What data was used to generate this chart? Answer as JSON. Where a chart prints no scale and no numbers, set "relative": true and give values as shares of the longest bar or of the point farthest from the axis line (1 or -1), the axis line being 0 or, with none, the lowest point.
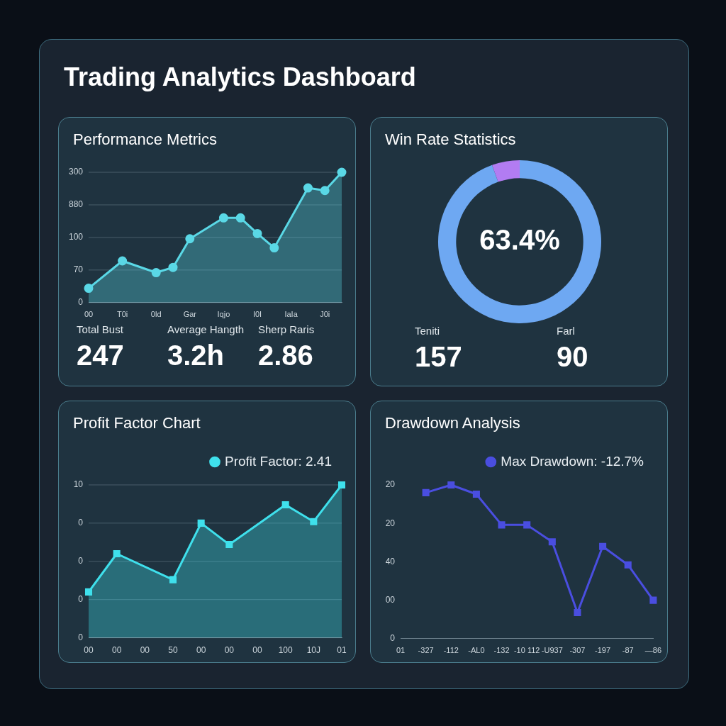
{
  "chart_data": [
    {
      "type": "other",
      "title": "Trading Analytics Dashboard"
    },
    {
      "type": "area",
      "title": "Performance Metrics",
      "relative": true,
      "categories": [
        "00",
        null,
        "T0i",
        null,
        "0ld",
        null,
        "Gar",
        null,
        "Iqjo",
        null,
        "I0I",
        null,
        "IaIa",
        null,
        "J0i",
        null
      ],
      "values": [
        0.11,
        null,
        0.32,
        null,
        0.23,
        0.27,
        0.49,
        null,
        0.65,
        0.65,
        0.53,
        0.42,
        null,
        0.88,
        0.86,
        1
      ],
      "color": "#5ad8e6",
      "marker": "circle",
      "grid": "y",
      "annotations": [
        "300",
        "880",
        "100",
        "70",
        "0"
      ]
    },
    {
      "type": "other",
      "annotations": [
        "Total Bust",
        "247",
        "Average Hangth",
        "3.2h",
        "Sherp Raris",
        "2.86"
      ]
    },
    {
      "type": "donut",
      "title": "Win Rate Statistics",
      "categories": [
        null,
        null
      ],
      "values": [
        94.5,
        5.5
      ],
      "colors": [
        "#6ea8f2",
        "#b27cf2"
      ],
      "annotations": [
        "63.4%",
        "Teniti",
        "157",
        "Farl",
        "90"
      ]
    },
    {
      "type": "area",
      "title": "Profit Factor Chart",
      "relative": true,
      "categories": [
        "00",
        "00",
        "00",
        "50",
        "00",
        "00",
        "00",
        "100",
        "10J",
        "01"
      ],
      "series": [
        {
          "name": "Profit Factor: 2.41",
          "color": "#3fe0ec",
          "values": [
            0.3,
            0.55,
            null,
            0.38,
            0.75,
            0.61,
            null,
            0.87,
            0.76,
            1
          ]
        }
      ],
      "marker": "square",
      "legend": "top right",
      "grid": "y",
      "annotations": [
        "10",
        "0",
        "0",
        "0",
        "0"
      ]
    },
    {
      "type": "line",
      "title": "Drawdown Analysis",
      "relative": true,
      "categories": [
        "01",
        "-327",
        "-112",
        "-AL0",
        "-132",
        "-10 112",
        "-U937",
        "-307",
        "-197",
        "-87",
        "—86"
      ],
      "series": [
        {
          "name": "Max Drawdown: -12.7%",
          "color": "#4a4ee0",
          "values": [
            null,
            0.95,
            1,
            0.94,
            0.74,
            0.74,
            0.63,
            0.17,
            0.6,
            0.48,
            0.25
          ]
        }
      ],
      "marker": "square",
      "legend": "top right",
      "annotations": [
        "20",
        "20",
        "40",
        "00",
        "0"
      ]
    }
  ]
}
